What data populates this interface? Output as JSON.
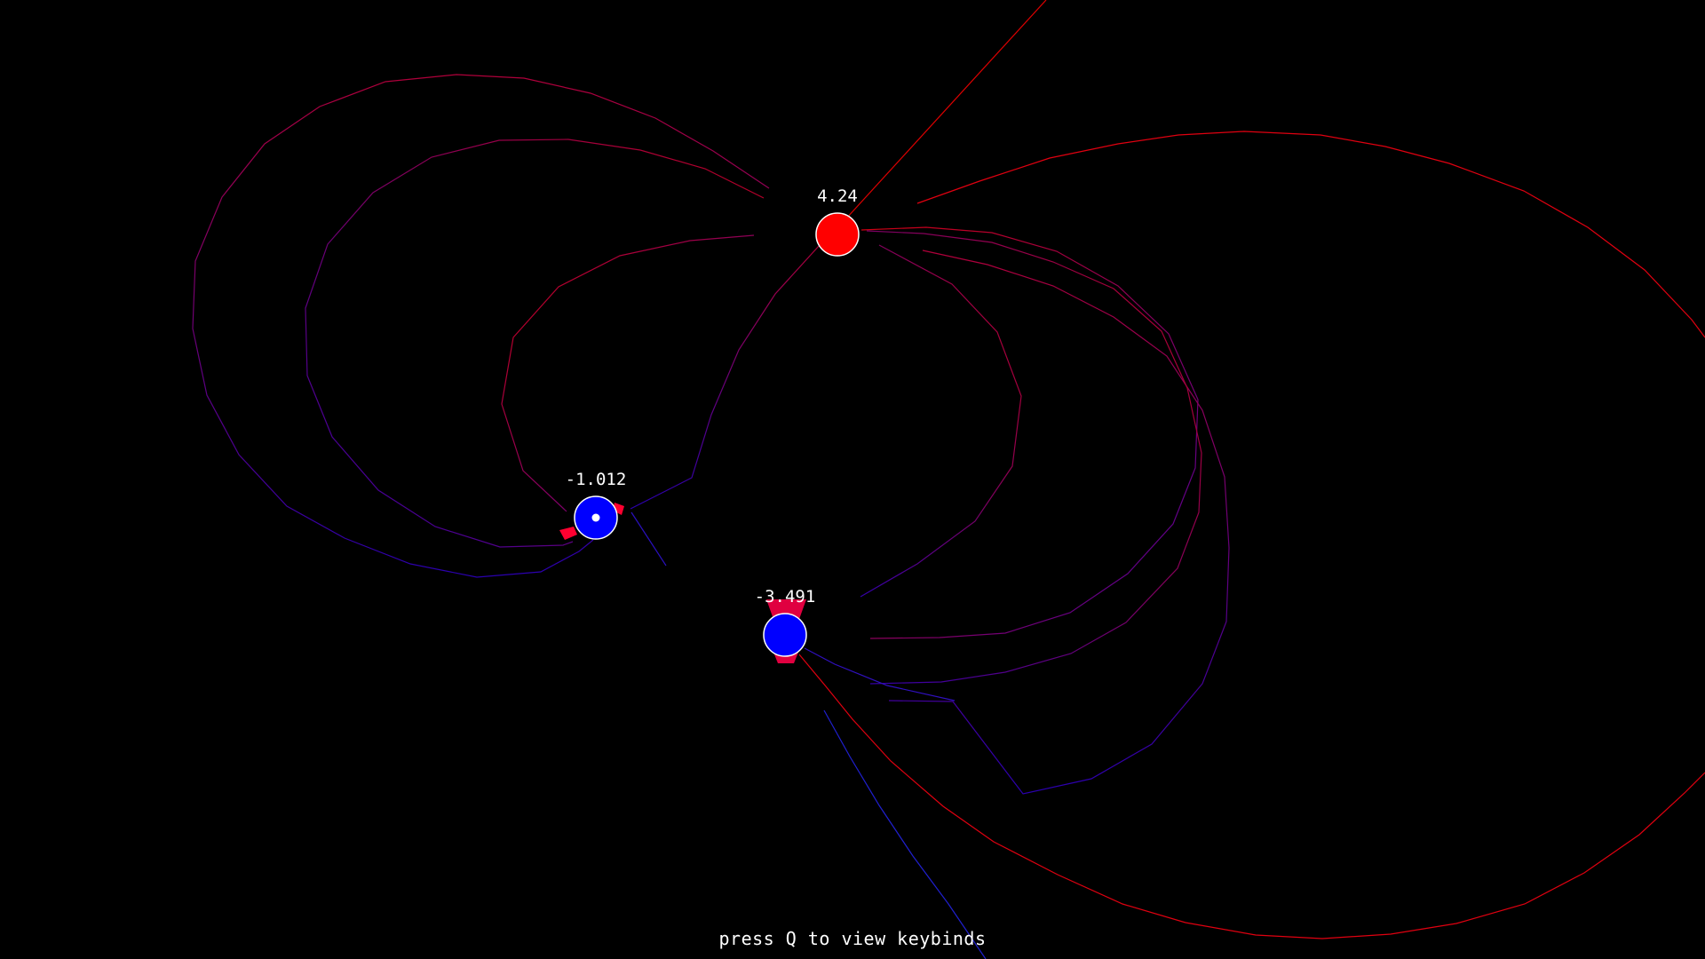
{
  "app": {
    "background": "#000000",
    "hint": "press Q to view keybinds"
  },
  "colors": {
    "positive": "#ff0000",
    "negative": "#0000ff",
    "outline": "#ffffff"
  },
  "charges": [
    {
      "id": "charge-positive",
      "label": "4.24",
      "polarity": "positive",
      "selected": false
    },
    {
      "id": "charge-negative-a",
      "label": "-1.012",
      "polarity": "negative",
      "selected": true
    },
    {
      "id": "charge-negative-b",
      "label": "-3.491",
      "polarity": "negative",
      "selected": false
    }
  ]
}
